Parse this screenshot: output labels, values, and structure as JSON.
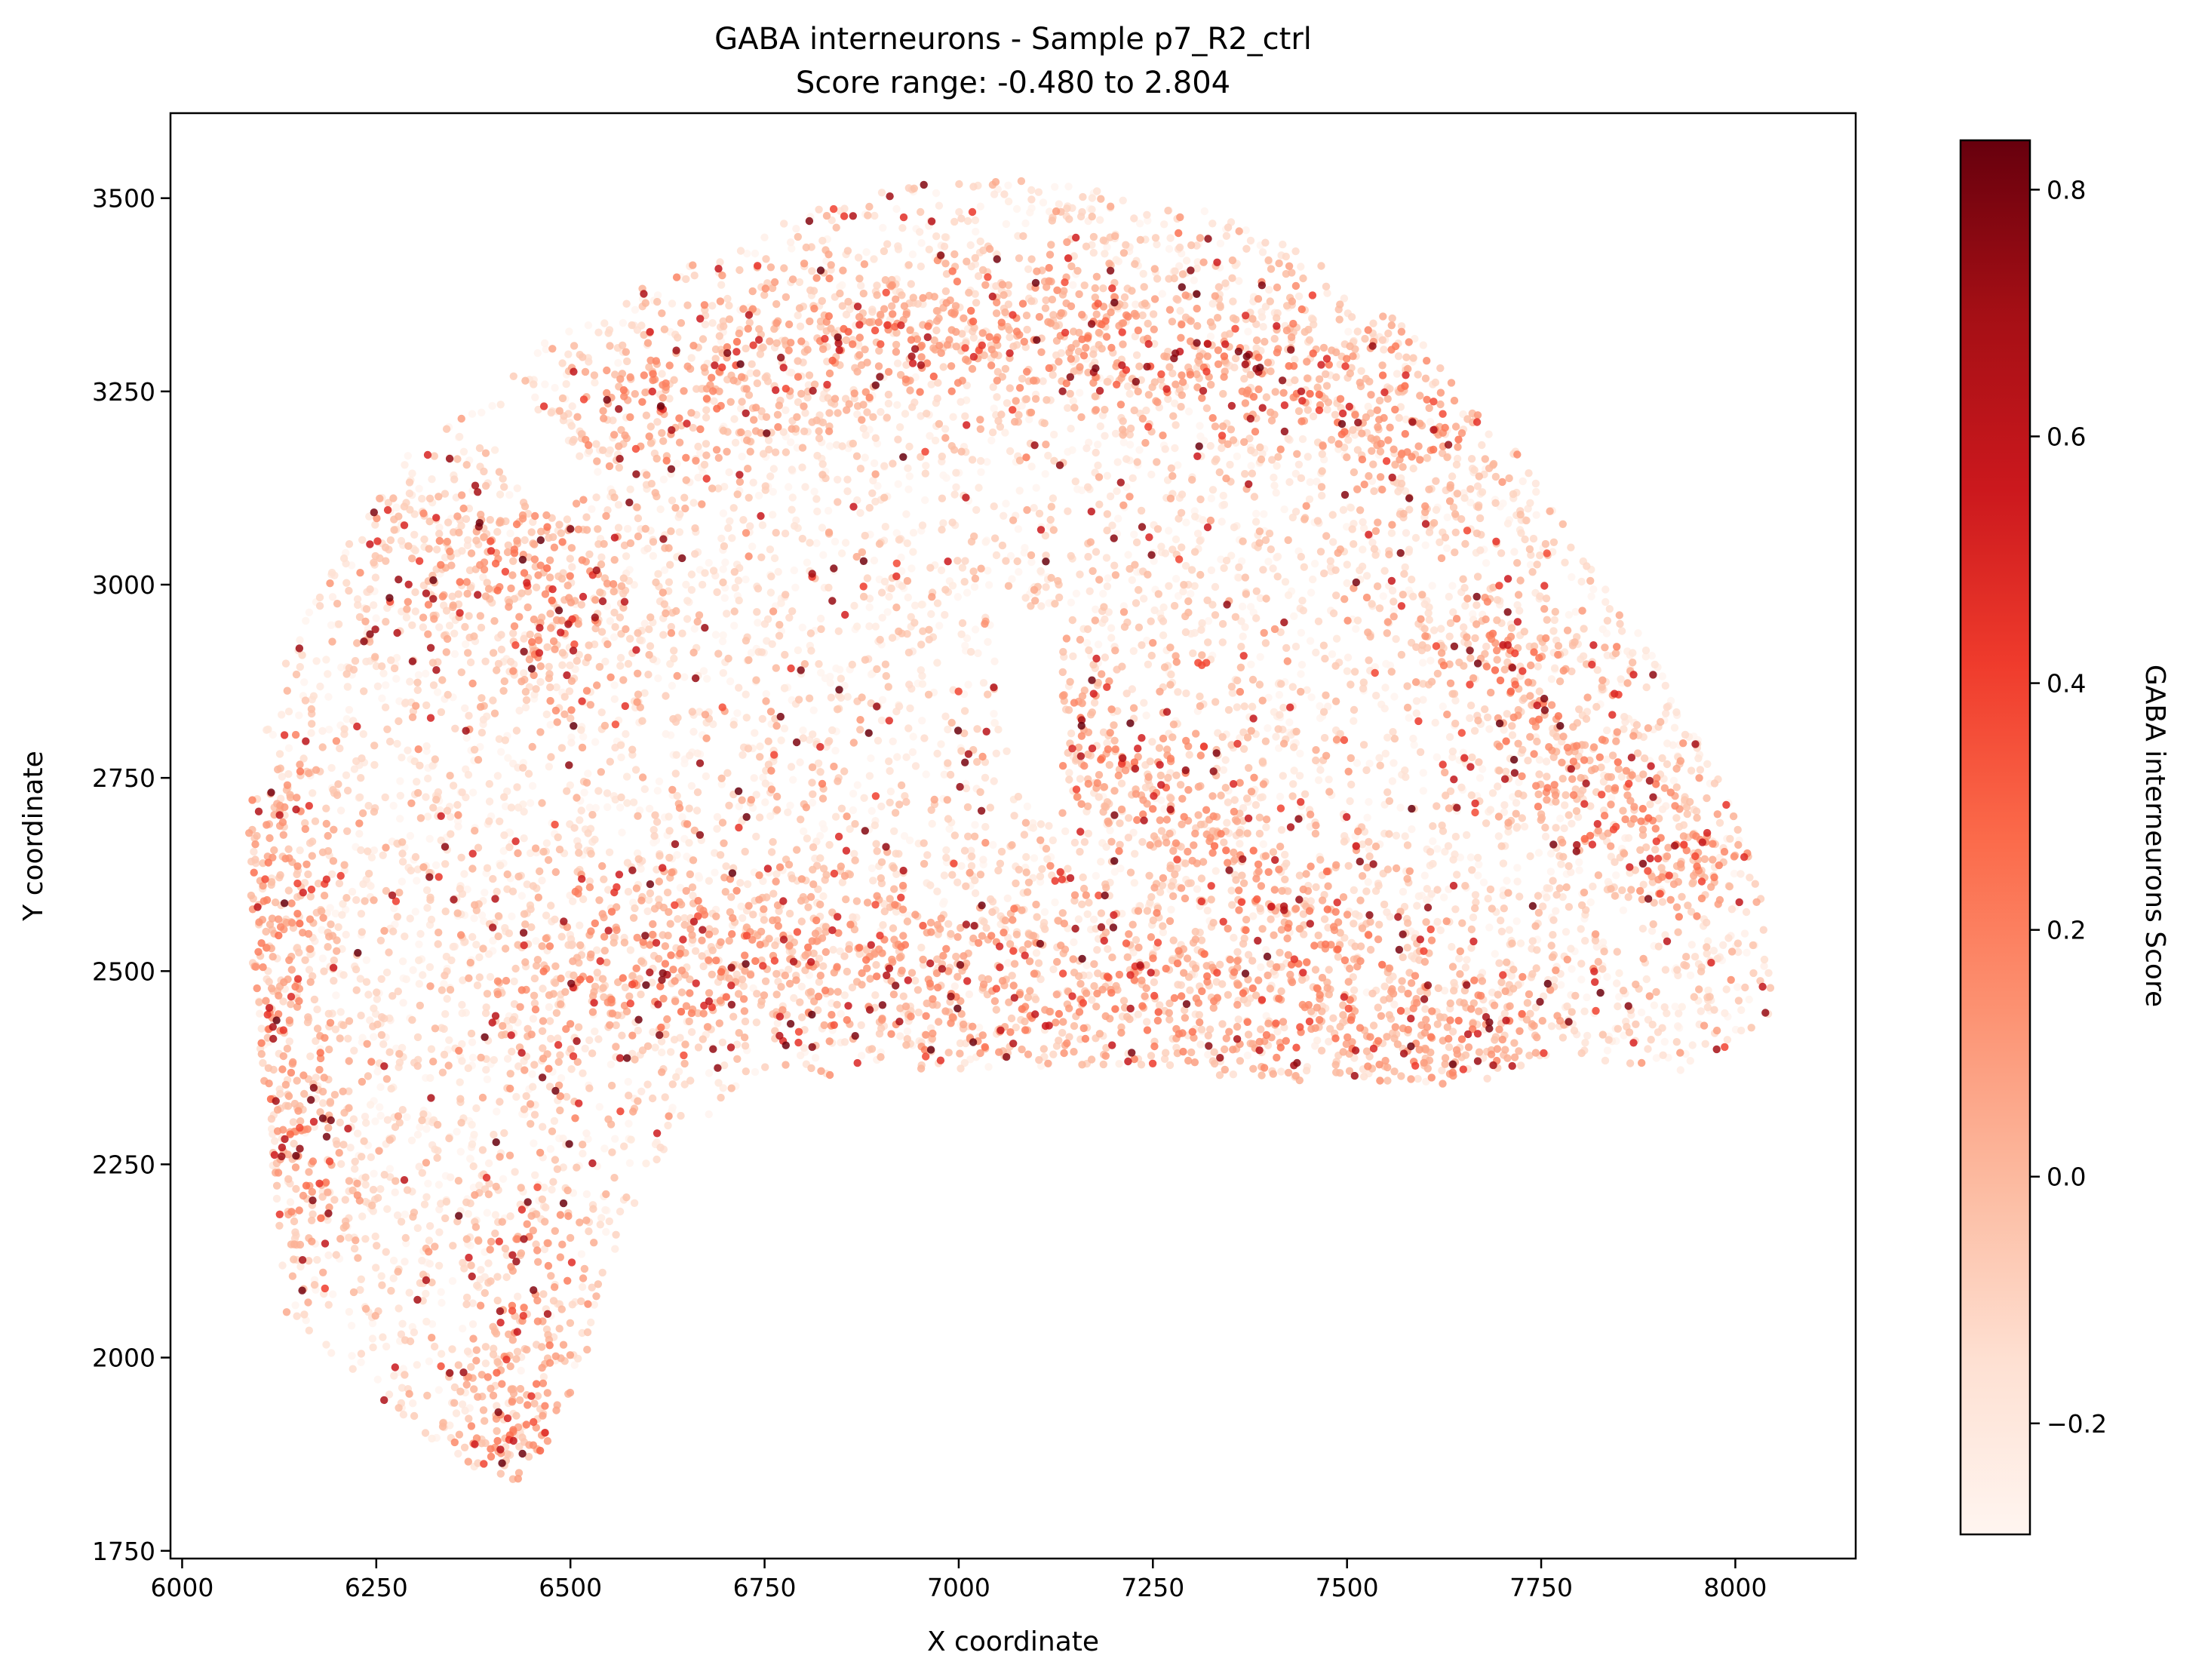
{
  "chart_data": {
    "type": "scatter",
    "title": "GABA interneurons - Sample p7_R2_ctrl",
    "subtitle": "Score range: -0.480 to 2.804",
    "xlabel": "X coordinate",
    "ylabel": "Y coordinate",
    "xlim": [
      5985,
      8155
    ],
    "ylim": [
      1740,
      3610
    ],
    "x_ticks": [
      "6000",
      "6250",
      "6500",
      "6750",
      "7000",
      "7250",
      "7500",
      "7750",
      "8000"
    ],
    "y_ticks": [
      "1750",
      "2000",
      "2250",
      "2500",
      "2750",
      "3000",
      "3250",
      "3500"
    ],
    "grid": false,
    "legend": "none",
    "colormap": "Reds",
    "colorbar": {
      "label": "GABA interneurons Score",
      "range": [
        -0.29,
        0.84
      ],
      "ticks": [
        "−0.2",
        "0.0",
        "0.2",
        "0.4",
        "0.6",
        "0.8"
      ],
      "colors": [
        "#fff5f0",
        "#fee0d2",
        "#fcbba1",
        "#fc9272",
        "#fb6a4a",
        "#ef3b2c",
        "#cb181d",
        "#a50f15",
        "#67000d"
      ]
    },
    "tissue_outline": [
      [
        6130,
        2060
      ],
      [
        6200,
        1995
      ],
      [
        6280,
        1925
      ],
      [
        6360,
        1865
      ],
      [
        6430,
        1835
      ],
      [
        6480,
        1900
      ],
      [
        6520,
        2000
      ],
      [
        6560,
        2150
      ],
      [
        6630,
        2280
      ],
      [
        6750,
        2350
      ],
      [
        6900,
        2370
      ],
      [
        7050,
        2370
      ],
      [
        7200,
        2380
      ],
      [
        7350,
        2360
      ],
      [
        7500,
        2350
      ],
      [
        7650,
        2355
      ],
      [
        7800,
        2380
      ],
      [
        7950,
        2370
      ],
      [
        8050,
        2450
      ],
      [
        8040,
        2600
      ],
      [
        7980,
        2750
      ],
      [
        7900,
        2900
      ],
      [
        7800,
        3050
      ],
      [
        7700,
        3200
      ],
      [
        7580,
        3330
      ],
      [
        7450,
        3430
      ],
      [
        7300,
        3490
      ],
      [
        7150,
        3520
      ],
      [
        7000,
        3525
      ],
      [
        6850,
        3500
      ],
      [
        6700,
        3440
      ],
      [
        6580,
        3380
      ],
      [
        6480,
        3330
      ],
      [
        6420,
        3270
      ],
      [
        6370,
        3230
      ],
      [
        6330,
        3200
      ],
      [
        6290,
        3170
      ],
      [
        6240,
        3100
      ],
      [
        6180,
        3000
      ],
      [
        6120,
        2870
      ],
      [
        6085,
        2700
      ],
      [
        6090,
        2500
      ],
      [
        6110,
        2300
      ],
      [
        6120,
        2150
      ]
    ],
    "tissue_gaps": [
      [
        [
          6390,
          3230
        ],
        [
          6480,
          3210
        ],
        [
          6540,
          3120
        ],
        [
          6470,
          3090
        ],
        [
          6410,
          3160
        ]
      ],
      [
        [
          7040,
          2990
        ],
        [
          7120,
          2960
        ],
        [
          7140,
          2800
        ],
        [
          7120,
          2700
        ],
        [
          7080,
          2720
        ],
        [
          7050,
          2850
        ]
      ]
    ],
    "high_bands": [
      {
        "points": [
          [
            6600,
            3230
          ],
          [
            6900,
            3330
          ],
          [
            7150,
            3330
          ],
          [
            7400,
            3280
          ],
          [
            7600,
            3180
          ]
        ],
        "width": 70
      },
      {
        "points": [
          [
            6500,
            2490
          ],
          [
            6800,
            2530
          ],
          [
            7100,
            2480
          ],
          [
            7400,
            2440
          ],
          [
            7650,
            2420
          ]
        ],
        "width": 80
      },
      {
        "points": [
          [
            6350,
            3020
          ],
          [
            6450,
            3040
          ],
          [
            6500,
            2950
          ]
        ],
        "width": 70
      },
      {
        "points": [
          [
            7180,
            2800
          ],
          [
            7300,
            2700
          ],
          [
            7400,
            2600
          ],
          [
            7500,
            2500
          ]
        ],
        "width": 70
      },
      {
        "points": [
          [
            6120,
            2700
          ],
          [
            6110,
            2450
          ],
          [
            6130,
            2200
          ]
        ],
        "width": 60
      },
      {
        "points": [
          [
            7700,
            2900
          ],
          [
            7800,
            2750
          ],
          [
            7950,
            2650
          ]
        ],
        "width": 60
      },
      {
        "points": [
          [
            6400,
            1950
          ],
          [
            6430,
            1870
          ],
          [
            6450,
            2150
          ]
        ],
        "width": 50
      }
    ],
    "n_points": 9500,
    "seed": 20240607
  }
}
